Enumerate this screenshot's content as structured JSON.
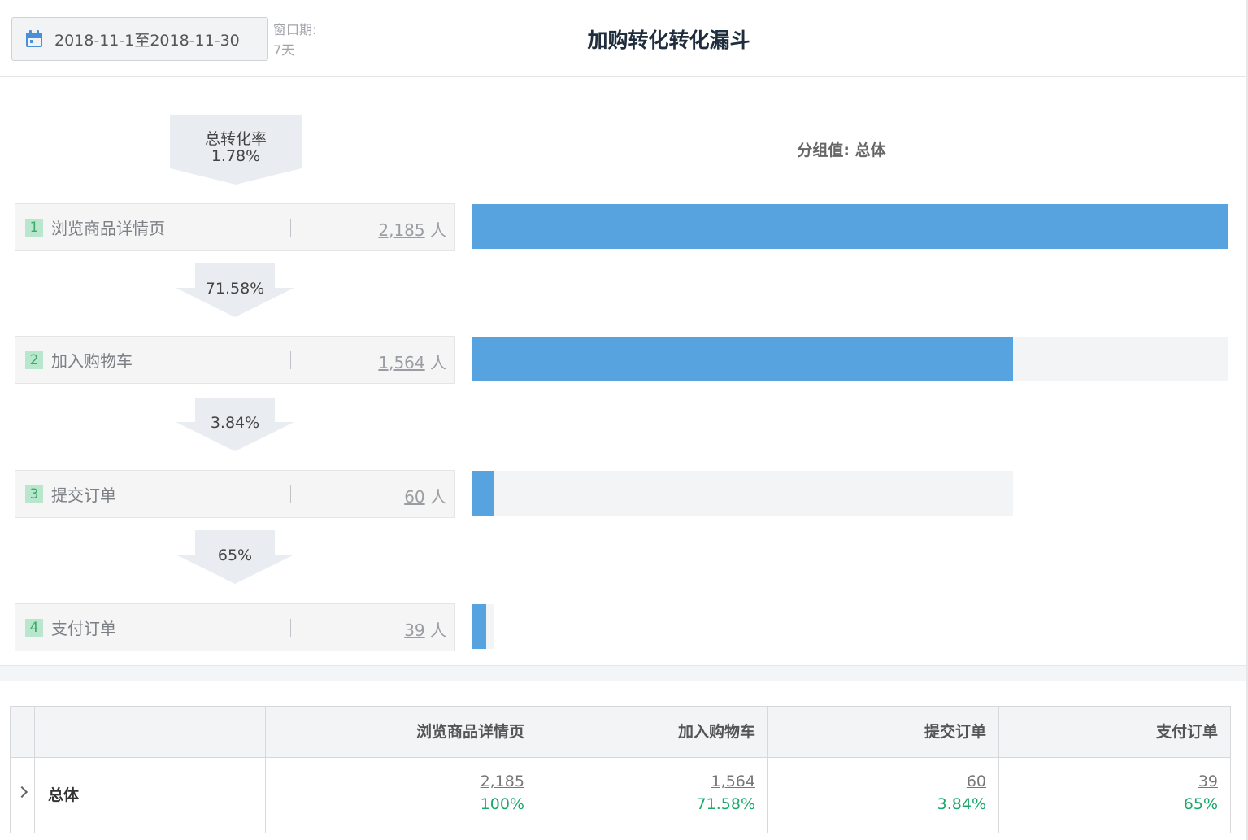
{
  "header": {
    "date_range": "2018-11-1至2018-11-30",
    "window_label": "窗口期:",
    "window_value": "7天",
    "title": "加购转化转化漏斗"
  },
  "funnel": {
    "total_label": "总转化率",
    "total_rate": "1.78%",
    "group_label": "分组值: 总体",
    "unit": "人",
    "steps": [
      {
        "num": "1",
        "name": "浏览商品详情页",
        "count": "2,185",
        "value": 2185,
        "track_fraction": 1.0
      },
      {
        "num": "2",
        "name": "加入购物车",
        "count": "1,564",
        "value": 1564,
        "track_fraction": 1.0
      },
      {
        "num": "3",
        "name": "提交订单",
        "count": "60",
        "value": 60,
        "track_fraction": 0.7158
      },
      {
        "num": "4",
        "name": "支付订单",
        "count": "39",
        "value": 39,
        "track_fraction": 0.0275
      }
    ],
    "conversions": [
      "71.58%",
      "3.84%",
      "65%"
    ],
    "colors": {
      "bar": "#57a3e0",
      "track": "#f3f4f5",
      "step_num": "#3cab6c"
    }
  },
  "table": {
    "headers": [
      "浏览商品详情页",
      "加入购物车",
      "提交订单",
      "支付订单"
    ],
    "rows": [
      {
        "group": "总体",
        "cells": [
          {
            "value": "2,185",
            "pct": "100%"
          },
          {
            "value": "1,564",
            "pct": "71.58%"
          },
          {
            "value": "60",
            "pct": "3.84%"
          },
          {
            "value": "39",
            "pct": "65%"
          }
        ]
      }
    ]
  }
}
